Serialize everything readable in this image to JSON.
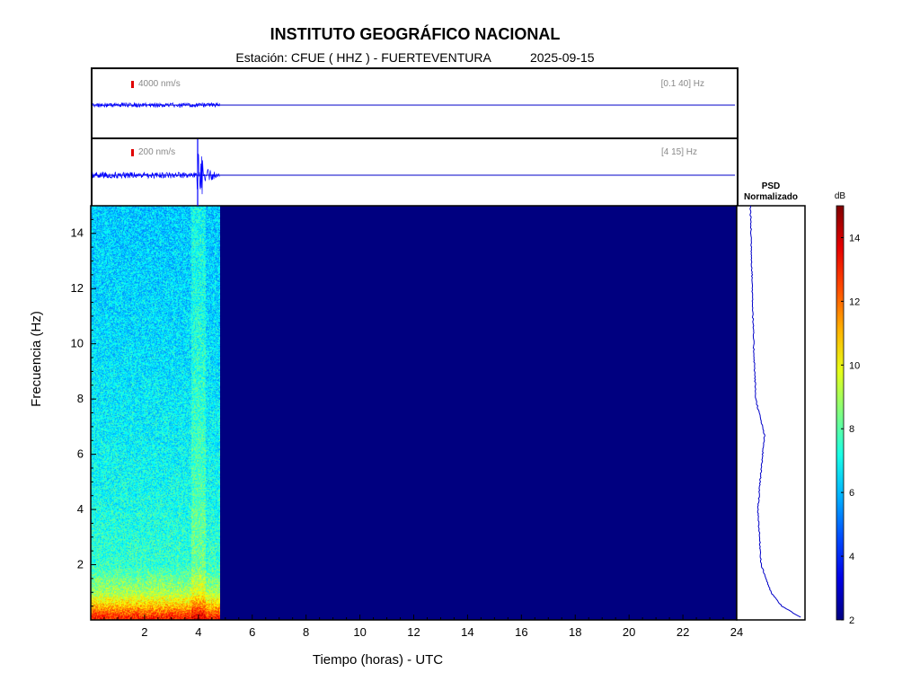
{
  "header": {
    "title": "INSTITUTO GEOGRÁFICO NACIONAL",
    "station_label": "Estación:",
    "station": "CFUE ( HHZ ) - FUERTEVENTURA",
    "date": "2025-09-15"
  },
  "traces": [
    {
      "scale": "4000 nm/s",
      "band": "[0.1 40] Hz"
    },
    {
      "scale": "200 nm/s",
      "band": "[4 15] Hz"
    }
  ],
  "psd": {
    "title_line1": "PSD",
    "title_line2": "Normalizado"
  },
  "colorbar": {
    "unit": "dB",
    "ticks": [
      2,
      4,
      6,
      8,
      10,
      12,
      14
    ],
    "range": [
      2,
      15
    ],
    "colormap": "jet"
  },
  "chart_data": {
    "type": "heatmap",
    "xlabel": "Tiempo (horas) - UTC",
    "ylabel": "Frecuencia  (Hz)",
    "xlim": [
      0,
      24
    ],
    "ylim": [
      0,
      15
    ],
    "xticks": [
      2,
      4,
      6,
      8,
      10,
      12,
      14,
      16,
      18,
      20,
      22,
      24
    ],
    "yticks": [
      2,
      4,
      6,
      8,
      10,
      12,
      14
    ],
    "data_end_hour": 4.8,
    "event_hour": 4.0,
    "background_db": 2,
    "dB_profile_by_freq": [
      {
        "freq": 0.1,
        "db": 13
      },
      {
        "freq": 0.5,
        "db": 11
      },
      {
        "freq": 1.0,
        "db": 9
      },
      {
        "freq": 2.0,
        "db": 7.5
      },
      {
        "freq": 5.0,
        "db": 7
      },
      {
        "freq": 10.0,
        "db": 6.5
      },
      {
        "freq": 15.0,
        "db": 6.2
      }
    ],
    "psd_normalized_profile": [
      {
        "freq": 0.1,
        "value": 0.95
      },
      {
        "freq": 0.5,
        "value": 0.6
      },
      {
        "freq": 1.0,
        "value": 0.4
      },
      {
        "freq": 2.0,
        "value": 0.22
      },
      {
        "freq": 4.0,
        "value": 0.16
      },
      {
        "freq": 5.0,
        "value": 0.2
      },
      {
        "freq": 6.7,
        "value": 0.28
      },
      {
        "freq": 8.0,
        "value": 0.12
      },
      {
        "freq": 10.0,
        "value": 0.08
      },
      {
        "freq": 15.0,
        "value": 0.02
      }
    ]
  }
}
